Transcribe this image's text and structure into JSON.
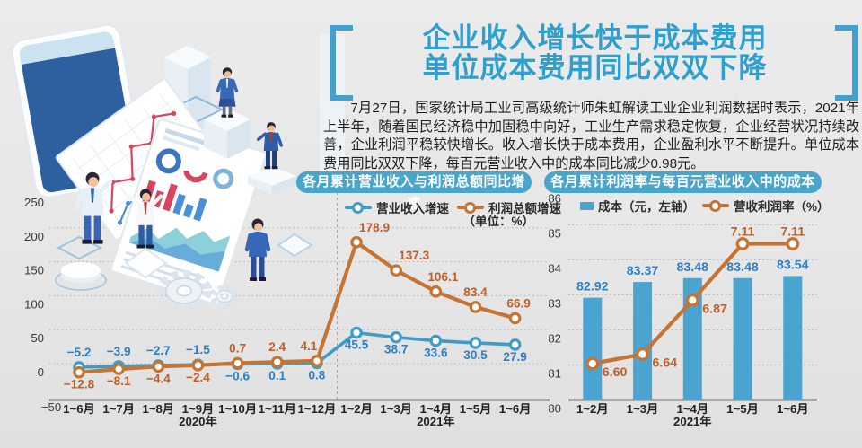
{
  "title": {
    "line1": "企业收入增长快于成本费用",
    "line2": "单位成本费用同比双双下降",
    "color": "#2f9fce",
    "bracket_color": "#3fa2ce"
  },
  "intro": {
    "text": "7月27日，国家统计局工业司高级统计师朱虹解读工业企业利润数据时表示，2021年上半年，随着国民经济稳中加固稳中向好，工业生产需求稳定恢复，企业经营状况持续改善，企业利润平稳较快增长。收入增长快于成本费用，企业盈利水平不断提升。单位成本费用同比双双下降，每百元营业收入中的成本同比减少0.98元。"
  },
  "accent_color": "#49a5cb",
  "chart_data": [
    {
      "type": "line",
      "title": "各月累计营业收入与利润总额同比增速",
      "unit_note": "（单位：%）",
      "categories": [
        "1~6月",
        "1~7月",
        "1~8月",
        "1~9月",
        "1~10月",
        "1~11月",
        "1~12月",
        "1~2月",
        "1~3月",
        "1~4月",
        "1~5月",
        "1~6月"
      ],
      "category_groups": [
        {
          "label": "2020年",
          "span": [
            0,
            6
          ]
        },
        {
          "label": "2021年",
          "span": [
            7,
            11
          ]
        }
      ],
      "series": [
        {
          "id": "revenue-growth",
          "name": "营业收入增速",
          "color": "#3f9cc9",
          "label_color": "#2e7fc5",
          "decimals": 1,
          "width": 3.6,
          "values": [
            -5.2,
            -3.9,
            -2.7,
            -1.5,
            -0.6,
            0.1,
            0.8,
            45.5,
            38.7,
            33.6,
            30.5,
            27.9
          ],
          "label_side": [
            "above",
            "above",
            "above",
            "above",
            "below",
            "below",
            "below",
            "below",
            "below",
            "below",
            "below",
            "below"
          ],
          "label_dx": [
            0,
            0,
            0,
            0,
            0,
            0,
            0,
            0,
            0,
            0,
            0,
            0
          ]
        },
        {
          "id": "profit-growth",
          "name": "利润总额增速",
          "color": "#c57434",
          "label_color": "#c25e28",
          "decimals": 1,
          "width": 4.2,
          "values": [
            -12.8,
            -8.1,
            -4.4,
            -2.4,
            0.7,
            2.4,
            4.1,
            178.9,
            137.3,
            106.1,
            83.4,
            66.9
          ],
          "label_side": [
            "below",
            "below",
            "below",
            "below",
            "above",
            "above",
            "above",
            "above",
            "above",
            "above",
            "above",
            "above"
          ],
          "label_dx": [
            0,
            0,
            0,
            0,
            0,
            0,
            -9,
            20,
            20,
            8,
            0,
            4
          ]
        }
      ],
      "ylim": [
        -50,
        250
      ],
      "ytick": 50,
      "grid": "dotted-horizontal",
      "legend_position": "top-right",
      "divider_after_index": 6
    },
    {
      "type": "bar+line",
      "title": "各月累计利润率与每百元营业收入中的成本",
      "categories": [
        "1~2月",
        "1~3月",
        "1~4月",
        "1~5月",
        "1~6月"
      ],
      "category_group": "2021年",
      "series": [
        {
          "id": "cost-per-100",
          "name": "成本（元，左轴）",
          "type": "bar",
          "axis": "left",
          "color": "#4ba4cf",
          "label_color": "#2e7fc5",
          "decimals": 2,
          "values": [
            82.92,
            83.37,
            83.48,
            83.48,
            83.54
          ]
        },
        {
          "id": "profit-margin",
          "name": "营收利润率（%）",
          "type": "line",
          "axis": "right",
          "color": "#c57434",
          "label_color": "#c25e28",
          "decimals": 2,
          "values": [
            6.6,
            6.64,
            6.87,
            7.11,
            7.11
          ],
          "label_side": [
            "below",
            "below",
            "below",
            "above",
            "above"
          ]
        }
      ],
      "ylim_left": [
        80,
        86
      ],
      "ytick_left": 1,
      "ylim_right_hint": [
        6.45,
        7.35
      ],
      "grid": "dotted-horizontal",
      "legend_position": "top"
    }
  ]
}
